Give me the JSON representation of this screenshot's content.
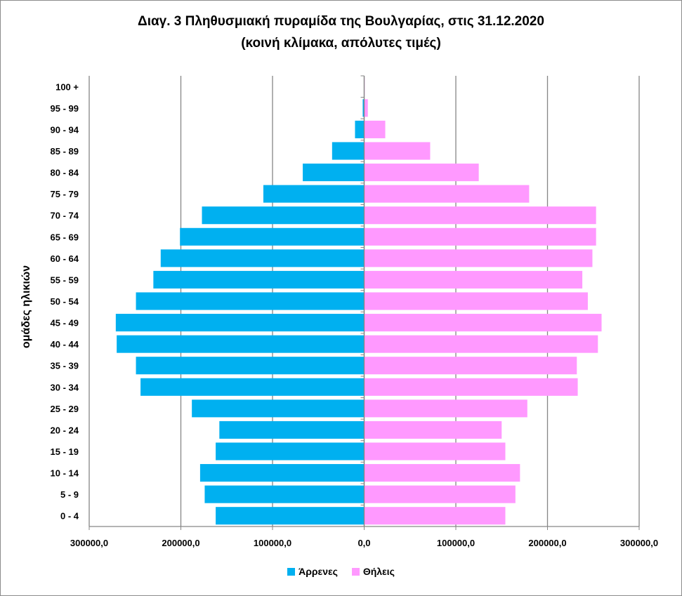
{
  "chart_data": {
    "type": "bar",
    "title": "Διαγ. 3  Πληθυσμιακή πυραμίδα της Βουλγαρίας, στις 31.12.2020",
    "subtitle": "(κοινή κλίμακα, απόλυτες τιμές)",
    "ylabel": "ομάδες ηλικιών",
    "xlabel": "",
    "categories": [
      "0 - 4",
      "5 - 9",
      "10 - 14",
      "15 - 19",
      "20 - 24",
      "25 - 29",
      "30 - 34",
      "35 - 39",
      "40 - 44",
      "45 - 49",
      "50 - 54",
      "55 - 59",
      "60 - 64",
      "65 - 69",
      "70 - 74",
      "75 - 79",
      "80 - 84",
      "85 - 89",
      "90 - 94",
      "95 - 99",
      "100 +"
    ],
    "series": [
      {
        "name": "Άρρενες",
        "color": "#00b0f0",
        "values": [
          -162000,
          -174000,
          -179000,
          -162000,
          -158000,
          -188000,
          -244000,
          -249000,
          -270000,
          -271000,
          -249000,
          -230000,
          -222000,
          -201000,
          -177000,
          -110000,
          -67000,
          -35000,
          -10000,
          -1600,
          -300
        ]
      },
      {
        "name": "Θήλεις",
        "color": "#ff99ff",
        "values": [
          154000,
          165000,
          170000,
          154000,
          150000,
          178000,
          233000,
          232000,
          255000,
          259000,
          244000,
          238000,
          249000,
          253000,
          253000,
          180000,
          125000,
          72000,
          23000,
          4000,
          600
        ]
      }
    ],
    "xlim": [
      -300000,
      300000
    ],
    "xticks": [
      -300000,
      -200000,
      -100000,
      0,
      100000,
      200000,
      300000
    ],
    "xtick_labels": [
      "300000,0",
      "200000,0",
      "100000,0",
      "0,0",
      "100000,0",
      "200000,0",
      "300000,0"
    ],
    "grid": true,
    "legend": "bottom"
  }
}
